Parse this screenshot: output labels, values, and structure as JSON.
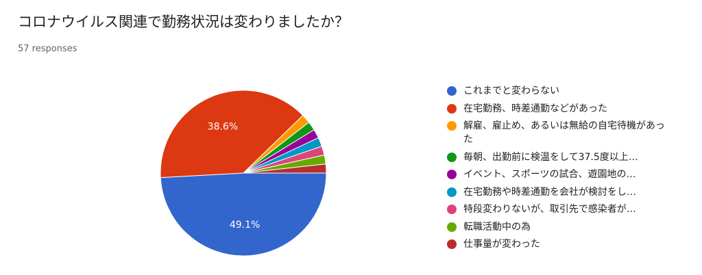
{
  "chart_data": {
    "type": "pie",
    "title": "コロナウイルス関連で勤務状況は変わりましたか？",
    "subtitle": "57 responses",
    "legend_position": "right",
    "slices": [
      {
        "label": "これまでと変わらない",
        "value": 49.1,
        "display": "49.1%",
        "color": "#3366cc"
      },
      {
        "label": "在宅勤務、時差通勤などがあった",
        "value": 38.6,
        "display": "38.6%",
        "color": "#dc3912"
      },
      {
        "label": "解雇、雇止め、あるいは無給の自宅待機があった",
        "value": 1.75,
        "display": "",
        "color": "#ff9900"
      },
      {
        "label": "毎朝、出勤前に検温をして37.5度以上…",
        "value": 1.75,
        "display": "",
        "color": "#109618"
      },
      {
        "label": "イベント、スポーツの試合、遊園地の…",
        "value": 1.75,
        "display": "",
        "color": "#990099"
      },
      {
        "label": "在宅勤務や時差通勤を会社が検討をし…",
        "value": 1.75,
        "display": "",
        "color": "#0099c6"
      },
      {
        "label": "特段変わりないが、取引先で感染者が…",
        "value": 1.75,
        "display": "",
        "color": "#dd4477"
      },
      {
        "label": "転職活動中の為",
        "value": 1.75,
        "display": "",
        "color": "#66aa00"
      },
      {
        "label": "仕事量が変わった",
        "value": 1.75,
        "display": "",
        "color": "#b82e2e"
      }
    ]
  }
}
